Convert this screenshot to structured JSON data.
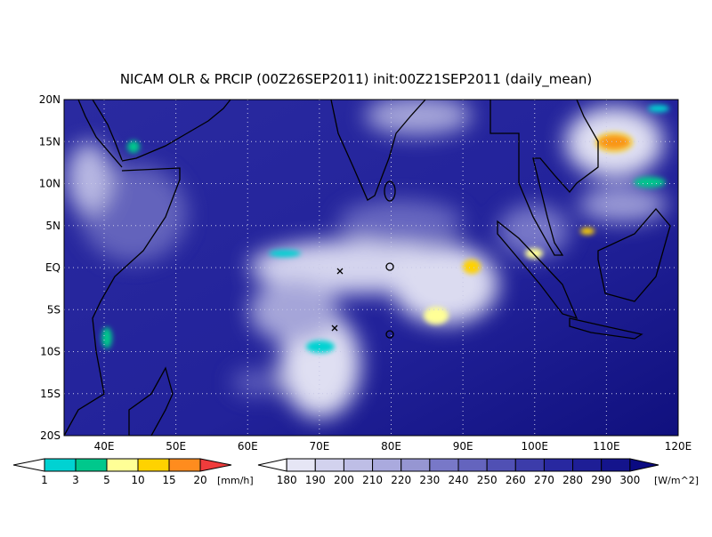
{
  "title": "NICAM OLR & PRCIP (00Z26SEP2011) init:00Z21SEP2011 (daily_mean)",
  "map": {
    "lat_labels": [
      "20N",
      "15N",
      "10N",
      "5N",
      "EQ",
      "5S",
      "10S",
      "15S",
      "20S"
    ],
    "lon_labels": [
      "40E",
      "50E",
      "60E",
      "70E",
      "80E",
      "90E",
      "100E",
      "110E",
      "120E"
    ]
  },
  "precip_colorbar": {
    "labels": [
      1,
      3,
      5,
      10,
      15,
      20
    ],
    "unit": "[mm/h]",
    "colors": [
      "#ffffff",
      "#00d2d2",
      "#00c88c",
      "#ffff96",
      "#ffd200",
      "#ff8c1e",
      "#f03c3c"
    ]
  },
  "olr_colorbar": {
    "labels": [
      180,
      190,
      200,
      210,
      220,
      230,
      240,
      250,
      260,
      270,
      280,
      290,
      300
    ],
    "unit": "[W/m^2]",
    "colors": [
      "#ffffff",
      "#e6e6f5",
      "#d2d2ee",
      "#bebee6",
      "#aaaade",
      "#9696d2",
      "#7878c8",
      "#6464be",
      "#5050b4",
      "#3c3caa",
      "#2828a0",
      "#1e1e96",
      "#14148c",
      "#0a0a82"
    ]
  }
}
